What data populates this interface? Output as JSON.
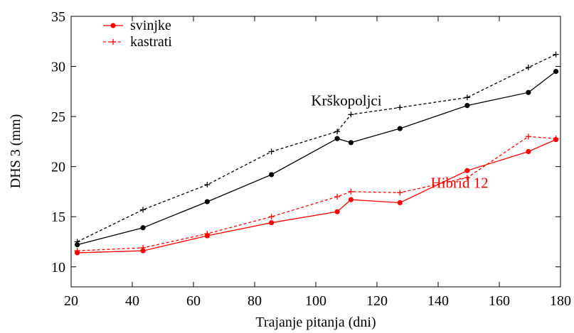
{
  "chart_data": {
    "type": "line",
    "xlabel": "Trajanje pitanja (dni)",
    "ylabel": "DHS 3 (mm)",
    "xlim": [
      20,
      180
    ],
    "ylim": [
      8,
      35
    ],
    "xticks": [
      20,
      40,
      60,
      80,
      100,
      120,
      140,
      160,
      180
    ],
    "yticks": [
      10,
      15,
      20,
      25,
      30,
      35
    ],
    "grid": false,
    "legend_position": "top-left",
    "legend": [
      {
        "label": "svinjke",
        "style": "solid",
        "marker": "dot",
        "color": "#ff0000"
      },
      {
        "label": "kastrati",
        "style": "dashed",
        "marker": "plus",
        "color": "#ff0000"
      }
    ],
    "annotations": [
      {
        "text": "Krškopoljci",
        "x": 110,
        "y": 26.1,
        "color": "#000000"
      },
      {
        "text": "Hibrid 12",
        "x": 147,
        "y": 17.9,
        "color": "#ff0000"
      }
    ],
    "series": [
      {
        "group": "Krškopoljci",
        "style": "solid",
        "marker": "dot",
        "color": "#000000",
        "x": [
          22,
          43.5,
          64.5,
          85.5,
          107,
          111.5,
          127.5,
          149.5,
          169.5,
          178.5
        ],
        "y": [
          12.2,
          13.9,
          16.5,
          19.2,
          22.8,
          22.4,
          23.8,
          26.1,
          27.4,
          29.5
        ]
      },
      {
        "group": "Krškopoljci",
        "style": "dashed",
        "marker": "plus",
        "color": "#000000",
        "x": [
          22,
          43.5,
          64.5,
          85.5,
          107,
          111.5,
          127.5,
          149.5,
          169.5,
          178.5
        ],
        "y": [
          12.5,
          15.7,
          18.2,
          21.5,
          23.5,
          25.2,
          25.9,
          26.9,
          29.9,
          31.2
        ]
      },
      {
        "group": "Hibrid 12",
        "style": "solid",
        "marker": "dot",
        "color": "#ff0000",
        "x": [
          22,
          43.5,
          64.5,
          85.5,
          107,
          111.5,
          127.5,
          149.5,
          169.5,
          178.5
        ],
        "y": [
          11.4,
          11.6,
          13.1,
          14.4,
          15.5,
          16.7,
          16.4,
          19.6,
          21.5,
          22.7
        ]
      },
      {
        "group": "Hibrid 12",
        "style": "dashed",
        "marker": "plus",
        "color": "#ff0000",
        "x": [
          22,
          43.5,
          64.5,
          85.5,
          107,
          111.5,
          127.5,
          149.5,
          169.5,
          178.5
        ],
        "y": [
          11.6,
          11.9,
          13.3,
          15.0,
          17.0,
          17.5,
          17.4,
          18.9,
          23.0,
          22.8
        ]
      }
    ]
  }
}
